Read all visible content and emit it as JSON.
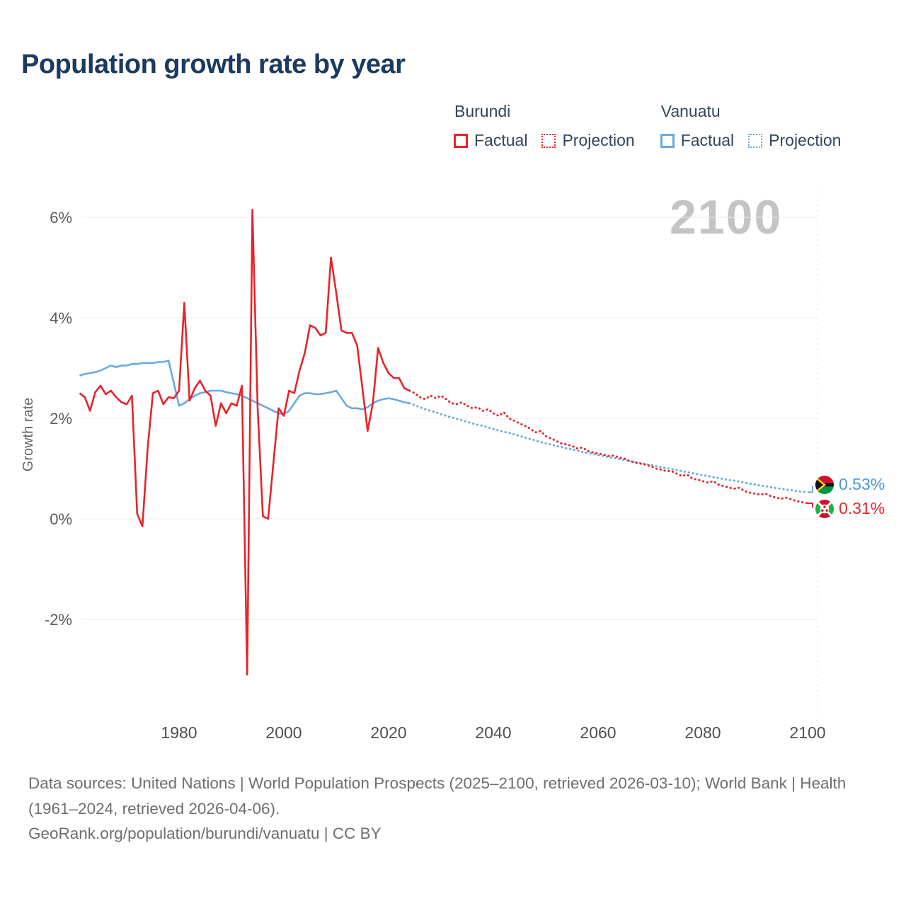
{
  "title": "Population growth rate by year",
  "watermark": "2100",
  "legend": {
    "groups": [
      {
        "country": "Burundi",
        "color": "#e8232a",
        "items": [
          {
            "label": "Factual",
            "line_style": "solid"
          },
          {
            "label": "Projection",
            "line_style": "dotted"
          }
        ]
      },
      {
        "country": "Vanuatu",
        "color": "#69aade",
        "items": [
          {
            "label": "Factual",
            "line_style": "solid"
          },
          {
            "label": "Projection",
            "line_style": "dotted"
          }
        ]
      }
    ]
  },
  "end_labels": [
    {
      "country": "Vanuatu",
      "value": "0.53%",
      "color": "#4697d9",
      "flag_icon": "vanuatu-flag-icon"
    },
    {
      "country": "Burundi",
      "value": "0.31%",
      "color": "#e8232a",
      "flag_icon": "burundi-flag-icon"
    }
  ],
  "chart_data": {
    "type": "line",
    "title": "Population growth rate by year",
    "xlabel": "",
    "ylabel": "Growth rate",
    "grid": true,
    "legend_position": "top",
    "selected_year": 2100,
    "x_ticks": [
      1980,
      2000,
      2020,
      2040,
      2060,
      2080,
      2100
    ],
    "y_ticks": [
      -2,
      0,
      2,
      4,
      6
    ],
    "y_tick_labels": [
      "-2%",
      "0%",
      "2%",
      "4%",
      "6%"
    ],
    "x_range": [
      1961,
      2103
    ],
    "y_range": [
      -3.6,
      6.5
    ],
    "series": [
      {
        "name": "Burundi Factual",
        "country": "Burundi",
        "kind": "factual",
        "color": "#e8232a",
        "line_style": "solid",
        "start_year": 1961,
        "values": [
          2.5,
          2.42,
          2.15,
          2.52,
          2.65,
          2.48,
          2.55,
          2.42,
          2.32,
          2.28,
          2.45,
          0.1,
          -0.15,
          1.4,
          2.5,
          2.55,
          2.28,
          2.42,
          2.4,
          2.55,
          4.3,
          2.35,
          2.6,
          2.75,
          2.55,
          2.45,
          1.85,
          2.3,
          2.1,
          2.3,
          2.25,
          2.65,
          -3.1,
          6.15,
          2.2,
          0.05,
          0.0,
          1.1,
          2.2,
          2.05,
          2.55,
          2.5,
          2.95,
          3.3,
          3.85,
          3.8,
          3.65,
          3.7,
          5.2,
          4.5,
          3.75,
          3.7,
          3.7,
          3.45,
          2.6,
          1.75,
          2.3,
          3.4,
          3.1,
          2.9,
          2.8,
          2.8,
          2.6,
          2.55
        ]
      },
      {
        "name": "Burundi Projection",
        "country": "Burundi",
        "kind": "projection",
        "color": "#e8232a",
        "line_style": "dotted",
        "start_year": 2024,
        "values": [
          2.55,
          2.5,
          2.42,
          2.38,
          2.45,
          2.4,
          2.45,
          2.38,
          2.3,
          2.28,
          2.32,
          2.25,
          2.2,
          2.22,
          2.15,
          2.18,
          2.1,
          2.05,
          2.12,
          2.0,
          1.95,
          1.9,
          1.85,
          1.8,
          1.72,
          1.75,
          1.65,
          1.6,
          1.55,
          1.5,
          1.48,
          1.45,
          1.4,
          1.42,
          1.35,
          1.32,
          1.3,
          1.28,
          1.25,
          1.26,
          1.22,
          1.2,
          1.15,
          1.12,
          1.1,
          1.08,
          1.05,
          1.0,
          0.98,
          0.95,
          0.95,
          0.9,
          0.85,
          0.88,
          0.8,
          0.78,
          0.75,
          0.72,
          0.75,
          0.68,
          0.65,
          0.62,
          0.6,
          0.62,
          0.55,
          0.52,
          0.5,
          0.48,
          0.5,
          0.45,
          0.42,
          0.4,
          0.42,
          0.38,
          0.35,
          0.33,
          0.31
        ]
      },
      {
        "name": "Vanuatu Factual",
        "country": "Vanuatu",
        "kind": "factual",
        "color": "#69aade",
        "line_style": "solid",
        "start_year": 1961,
        "values": [
          2.85,
          2.88,
          2.9,
          2.92,
          2.95,
          3.0,
          3.05,
          3.02,
          3.05,
          3.05,
          3.08,
          3.08,
          3.1,
          3.1,
          3.1,
          3.12,
          3.12,
          3.15,
          2.7,
          2.25,
          2.3,
          2.38,
          2.45,
          2.5,
          2.52,
          2.55,
          2.55,
          2.55,
          2.52,
          2.5,
          2.48,
          2.45,
          2.4,
          2.35,
          2.3,
          2.25,
          2.2,
          2.15,
          2.1,
          2.08,
          2.15,
          2.3,
          2.45,
          2.5,
          2.5,
          2.48,
          2.48,
          2.5,
          2.52,
          2.55,
          2.4,
          2.25,
          2.2,
          2.2,
          2.18,
          2.22,
          2.3,
          2.35,
          2.38,
          2.4,
          2.38,
          2.35,
          2.32,
          2.3
        ]
      },
      {
        "name": "Vanuatu Projection",
        "country": "Vanuatu",
        "kind": "projection",
        "color": "#69aade",
        "line_style": "dotted",
        "start_year": 2024,
        "values": [
          2.3,
          2.26,
          2.22,
          2.18,
          2.15,
          2.12,
          2.08,
          2.05,
          2.02,
          1.99,
          1.96,
          1.93,
          1.9,
          1.87,
          1.85,
          1.82,
          1.79,
          1.76,
          1.73,
          1.71,
          1.68,
          1.65,
          1.62,
          1.59,
          1.56,
          1.53,
          1.5,
          1.48,
          1.45,
          1.43,
          1.4,
          1.38,
          1.36,
          1.33,
          1.31,
          1.29,
          1.27,
          1.25,
          1.23,
          1.21,
          1.19,
          1.17,
          1.15,
          1.13,
          1.11,
          1.09,
          1.07,
          1.05,
          1.03,
          1.01,
          0.99,
          0.97,
          0.95,
          0.93,
          0.91,
          0.89,
          0.87,
          0.85,
          0.83,
          0.81,
          0.79,
          0.77,
          0.76,
          0.74,
          0.72,
          0.7,
          0.68,
          0.66,
          0.65,
          0.63,
          0.61,
          0.6,
          0.58,
          0.57,
          0.55,
          0.54,
          0.53
        ]
      }
    ]
  },
  "footer": {
    "sources": "Data sources: United Nations | World Population Prospects (2025–2100, retrieved 2026-03-10); World Bank | Health (1961–2024, retrieved 2026-04-06).",
    "attribution": "GeoRank.org/population/burundi/vanuatu | CC BY"
  }
}
